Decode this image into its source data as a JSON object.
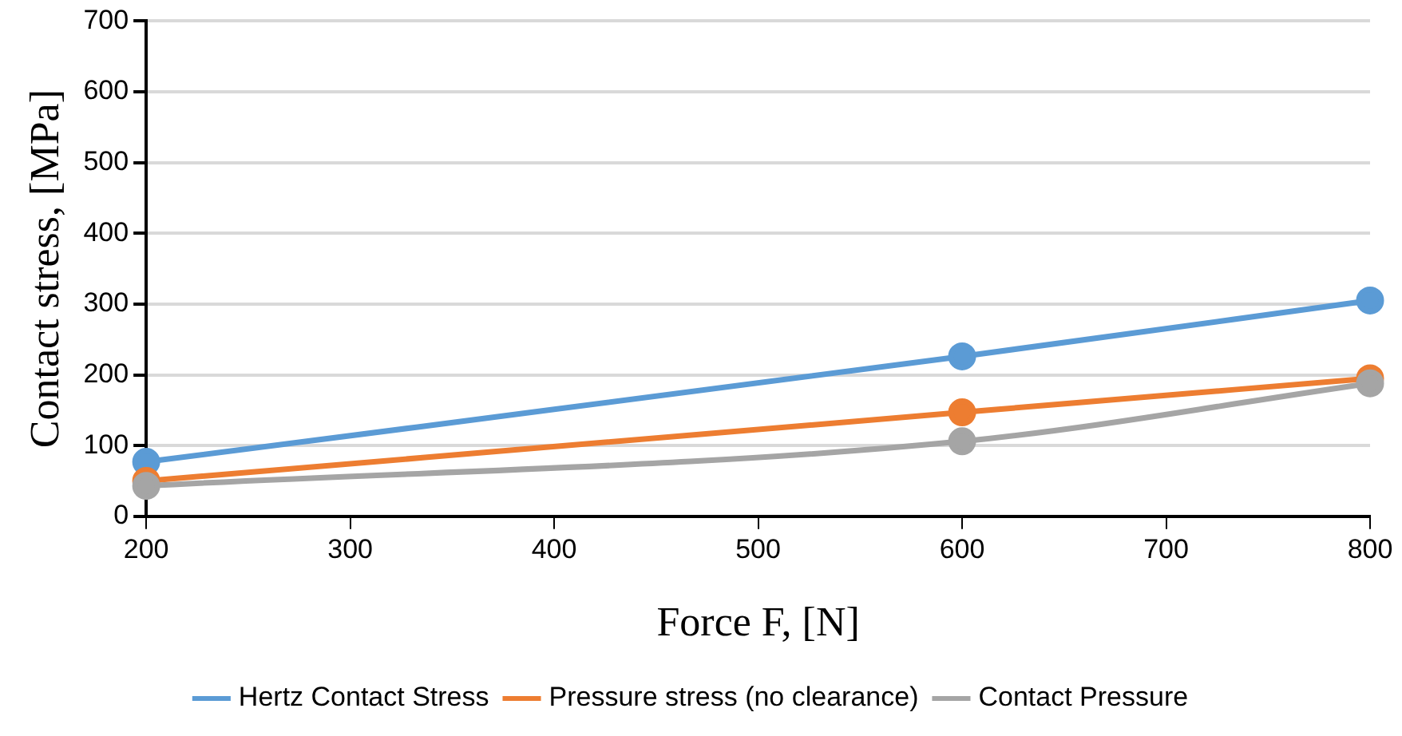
{
  "chart_data": {
    "type": "line",
    "xlabel": "Force F, [N]",
    "ylabel": "Contact stress, [MPa]",
    "x": [
      200,
      600,
      800
    ],
    "series": [
      {
        "name": "Hertz Contact Stress",
        "color": "#5b9bd5",
        "values": [
          77,
          226,
          305
        ]
      },
      {
        "name": "Pressure stress (no clearance)",
        "color": "#ed7d31",
        "values": [
          50,
          147,
          195
        ]
      },
      {
        "name": "Contact Pressure",
        "color": "#a5a5a5",
        "values": [
          43,
          106,
          188
        ]
      }
    ],
    "xlim": [
      200,
      800
    ],
    "xticks": [
      200,
      300,
      400,
      500,
      600,
      700,
      800
    ],
    "ylim": [
      0,
      700
    ],
    "yticks": [
      0,
      100,
      200,
      300,
      400,
      500,
      600,
      700
    ],
    "grid": "y",
    "legend": "bottom",
    "marker": "circle",
    "line_style": "solid"
  }
}
